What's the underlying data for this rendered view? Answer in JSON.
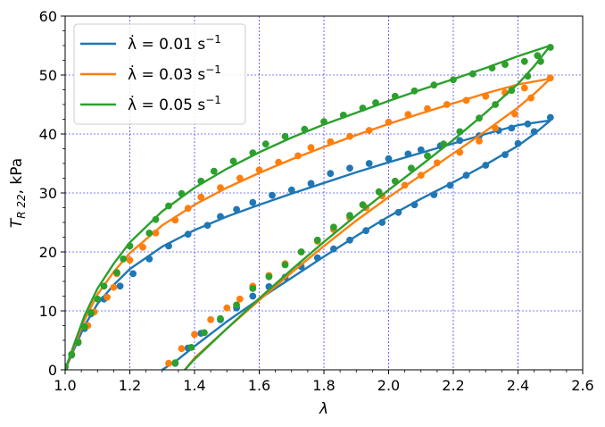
{
  "chart_data": {
    "type": "line",
    "xlabel": "λ",
    "ylabel_main": "T",
    "ylabel_sub": "R 22",
    "ylabel_suffix": ", kPa",
    "xlim": [
      1.0,
      2.6
    ],
    "ylim": [
      0,
      60
    ],
    "xticks": [
      1.0,
      1.2,
      1.4,
      1.6,
      1.8,
      2.0,
      2.2,
      2.4,
      2.6
    ],
    "yticks": [
      0,
      10,
      20,
      30,
      40,
      50,
      60
    ],
    "xtick_labels": [
      "1.0",
      "1.2",
      "1.4",
      "1.6",
      "1.8",
      "2.0",
      "2.2",
      "2.4",
      "2.6"
    ],
    "ytick_labels": [
      "0",
      "10",
      "20",
      "30",
      "40",
      "50",
      "60"
    ],
    "grid": true,
    "legend_position": "top-left",
    "series": [
      {
        "name_prefix": "λ̇ =  0.01 s",
        "name_exp": "−1",
        "color": "#1f77b4",
        "model_loading": [
          [
            1.0,
            0
          ],
          [
            1.03,
            3.8
          ],
          [
            1.06,
            7.5
          ],
          [
            1.1,
            11.2
          ],
          [
            1.15,
            14.4
          ],
          [
            1.2,
            17.1
          ],
          [
            1.3,
            20.9
          ],
          [
            1.4,
            23.7
          ],
          [
            1.5,
            26.0
          ],
          [
            1.6,
            28.0
          ],
          [
            1.7,
            29.9
          ],
          [
            1.8,
            31.7
          ],
          [
            1.9,
            33.5
          ],
          [
            2.0,
            35.2
          ],
          [
            2.1,
            36.8
          ],
          [
            2.2,
            38.4
          ],
          [
            2.3,
            40.0
          ],
          [
            2.4,
            41.5
          ],
          [
            2.5,
            42.3
          ]
        ],
        "model_unloading": [
          [
            2.5,
            42.3
          ],
          [
            2.45,
            40.0
          ],
          [
            2.4,
            38.0
          ],
          [
            2.3,
            34.8
          ],
          [
            2.2,
            31.8
          ],
          [
            2.1,
            29.0
          ],
          [
            2.0,
            26.0
          ],
          [
            1.9,
            22.7
          ],
          [
            1.8,
            19.2
          ],
          [
            1.7,
            15.6
          ],
          [
            1.6,
            12.0
          ],
          [
            1.5,
            8.2
          ],
          [
            1.4,
            4.0
          ],
          [
            1.35,
            1.8
          ],
          [
            1.3,
            0
          ]
        ],
        "experiment": [
          [
            1.0,
            0.5
          ],
          [
            1.02,
            2.5
          ],
          [
            1.04,
            4.6
          ],
          [
            1.06,
            7.0
          ],
          [
            1.08,
            9.5
          ],
          [
            1.12,
            12.0
          ],
          [
            1.17,
            14.2
          ],
          [
            1.21,
            16.3
          ],
          [
            1.26,
            18.8
          ],
          [
            1.32,
            21.0
          ],
          [
            1.38,
            23.0
          ],
          [
            1.44,
            24.5
          ],
          [
            1.48,
            26.0
          ],
          [
            1.53,
            27.2
          ],
          [
            1.58,
            28.4
          ],
          [
            1.64,
            29.6
          ],
          [
            1.7,
            30.5
          ],
          [
            1.76,
            31.6
          ],
          [
            1.82,
            33.3
          ],
          [
            1.88,
            34.2
          ],
          [
            1.94,
            35.0
          ],
          [
            2.0,
            35.8
          ],
          [
            2.06,
            36.6
          ],
          [
            2.1,
            37.3
          ],
          [
            2.16,
            38.0
          ],
          [
            2.22,
            38.9
          ],
          [
            2.28,
            39.7
          ],
          [
            2.34,
            40.6
          ],
          [
            2.38,
            41.0
          ],
          [
            2.43,
            41.7
          ],
          [
            2.5,
            42.8
          ],
          [
            2.45,
            40.4
          ],
          [
            2.4,
            38.4
          ],
          [
            2.36,
            36.5
          ],
          [
            2.3,
            34.7
          ],
          [
            2.24,
            33.0
          ],
          [
            2.19,
            31.3
          ],
          [
            2.14,
            29.7
          ],
          [
            2.08,
            28.0
          ],
          [
            2.03,
            26.7
          ],
          [
            1.98,
            25.0
          ],
          [
            1.93,
            23.6
          ],
          [
            1.88,
            22.0
          ],
          [
            1.83,
            20.5
          ],
          [
            1.78,
            19.0
          ],
          [
            1.73,
            17.5
          ],
          [
            1.68,
            15.7
          ],
          [
            1.63,
            14.1
          ],
          [
            1.58,
            12.5
          ],
          [
            1.53,
            10.5
          ],
          [
            1.48,
            8.5
          ],
          [
            1.42,
            6.2
          ],
          [
            1.38,
            3.7
          ],
          [
            1.34,
            1.1
          ]
        ]
      },
      {
        "name_prefix": "λ̇ =  0.03 s",
        "name_exp": "−1",
        "color": "#ff7f0e",
        "model_loading": [
          [
            1.0,
            0
          ],
          [
            1.03,
            4.3
          ],
          [
            1.06,
            8.5
          ],
          [
            1.1,
            12.8
          ],
          [
            1.15,
            16.6
          ],
          [
            1.2,
            19.8
          ],
          [
            1.3,
            24.5
          ],
          [
            1.4,
            28.0
          ],
          [
            1.5,
            30.9
          ],
          [
            1.6,
            33.4
          ],
          [
            1.7,
            35.7
          ],
          [
            1.8,
            37.8
          ],
          [
            1.9,
            39.8
          ],
          [
            2.0,
            41.7
          ],
          [
            2.1,
            43.5
          ],
          [
            2.2,
            45.2
          ],
          [
            2.3,
            46.9
          ],
          [
            2.4,
            48.4
          ],
          [
            2.5,
            49.4
          ]
        ],
        "model_unloading": [
          [
            2.5,
            49.4
          ],
          [
            2.45,
            46.8
          ],
          [
            2.4,
            44.5
          ],
          [
            2.3,
            40.5
          ],
          [
            2.2,
            36.7
          ],
          [
            2.1,
            33.0
          ],
          [
            2.0,
            29.3
          ],
          [
            1.9,
            25.3
          ],
          [
            1.8,
            21.0
          ],
          [
            1.7,
            16.5
          ],
          [
            1.6,
            11.8
          ],
          [
            1.5,
            7.0
          ],
          [
            1.45,
            4.5
          ],
          [
            1.4,
            2.0
          ],
          [
            1.37,
            0
          ]
        ],
        "experiment": [
          [
            1.0,
            0.5
          ],
          [
            1.02,
            2.6
          ],
          [
            1.04,
            4.8
          ],
          [
            1.07,
            7.5
          ],
          [
            1.09,
            9.8
          ],
          [
            1.13,
            12.3
          ],
          [
            1.15,
            14.0
          ],
          [
            1.16,
            16.3
          ],
          [
            1.2,
            18.6
          ],
          [
            1.24,
            20.8
          ],
          [
            1.28,
            23.2
          ],
          [
            1.34,
            25.4
          ],
          [
            1.38,
            27.4
          ],
          [
            1.42,
            29.3
          ],
          [
            1.48,
            30.9
          ],
          [
            1.54,
            32.5
          ],
          [
            1.6,
            33.9
          ],
          [
            1.66,
            35.2
          ],
          [
            1.72,
            36.3
          ],
          [
            1.76,
            37.7
          ],
          [
            1.82,
            38.7
          ],
          [
            1.88,
            39.6
          ],
          [
            1.94,
            40.6
          ],
          [
            2.0,
            42.0
          ],
          [
            2.06,
            43.3
          ],
          [
            2.12,
            44.3
          ],
          [
            2.18,
            45.0
          ],
          [
            2.24,
            45.7
          ],
          [
            2.3,
            46.4
          ],
          [
            2.36,
            47.0
          ],
          [
            2.42,
            47.8
          ],
          [
            2.5,
            49.5
          ],
          [
            2.44,
            46.1
          ],
          [
            2.39,
            43.4
          ],
          [
            2.33,
            41.0
          ],
          [
            2.28,
            38.8
          ],
          [
            2.22,
            36.9
          ],
          [
            2.15,
            35.1
          ],
          [
            2.1,
            33.0
          ],
          [
            2.05,
            31.3
          ],
          [
            1.98,
            29.5
          ],
          [
            1.93,
            27.5
          ],
          [
            1.88,
            25.8
          ],
          [
            1.83,
            23.8
          ],
          [
            1.78,
            21.8
          ],
          [
            1.73,
            20.0
          ],
          [
            1.68,
            18.0
          ],
          [
            1.63,
            16.0
          ],
          [
            1.58,
            14.2
          ],
          [
            1.54,
            12.0
          ],
          [
            1.5,
            10.5
          ],
          [
            1.45,
            8.5
          ],
          [
            1.4,
            6.0
          ],
          [
            1.36,
            3.6
          ],
          [
            1.32,
            1.1
          ]
        ]
      },
      {
        "name_prefix": "λ̇ =  0.05 s",
        "name_exp": "−1",
        "color": "#2ca02c",
        "model_loading": [
          [
            1.0,
            0
          ],
          [
            1.03,
            4.7
          ],
          [
            1.06,
            9.2
          ],
          [
            1.1,
            13.8
          ],
          [
            1.15,
            18.0
          ],
          [
            1.2,
            21.6
          ],
          [
            1.3,
            26.9
          ],
          [
            1.4,
            30.9
          ],
          [
            1.5,
            34.1
          ],
          [
            1.6,
            36.9
          ],
          [
            1.7,
            39.4
          ],
          [
            1.8,
            41.6
          ],
          [
            1.9,
            43.6
          ],
          [
            2.0,
            45.6
          ],
          [
            2.1,
            47.5
          ],
          [
            2.2,
            49.3
          ],
          [
            2.3,
            51.2
          ],
          [
            2.4,
            53.2
          ],
          [
            2.5,
            55.0
          ]
        ],
        "model_unloading": [
          [
            2.5,
            55.0
          ],
          [
            2.45,
            51.5
          ],
          [
            2.4,
            48.5
          ],
          [
            2.3,
            43.6
          ],
          [
            2.2,
            39.0
          ],
          [
            2.1,
            34.7
          ],
          [
            2.0,
            30.5
          ],
          [
            1.9,
            26.2
          ],
          [
            1.8,
            21.7
          ],
          [
            1.7,
            17.0
          ],
          [
            1.6,
            12.1
          ],
          [
            1.5,
            7.0
          ],
          [
            1.45,
            4.4
          ],
          [
            1.4,
            1.8
          ],
          [
            1.37,
            0
          ]
        ],
        "experiment": [
          [
            1.0,
            0.5
          ],
          [
            1.02,
            2.6
          ],
          [
            1.04,
            4.7
          ],
          [
            1.06,
            7.3
          ],
          [
            1.08,
            9.7
          ],
          [
            1.1,
            12.0
          ],
          [
            1.12,
            14.2
          ],
          [
            1.16,
            16.5
          ],
          [
            1.18,
            18.8
          ],
          [
            1.2,
            21.0
          ],
          [
            1.26,
            23.2
          ],
          [
            1.28,
            25.5
          ],
          [
            1.32,
            27.8
          ],
          [
            1.36,
            29.9
          ],
          [
            1.42,
            32.0
          ],
          [
            1.46,
            33.7
          ],
          [
            1.52,
            35.4
          ],
          [
            1.58,
            36.8
          ],
          [
            1.62,
            38.3
          ],
          [
            1.68,
            39.6
          ],
          [
            1.74,
            40.8
          ],
          [
            1.8,
            42.1
          ],
          [
            1.86,
            43.2
          ],
          [
            1.92,
            44.4
          ],
          [
            1.96,
            45.3
          ],
          [
            2.02,
            46.4
          ],
          [
            2.08,
            47.3
          ],
          [
            2.14,
            48.3
          ],
          [
            2.2,
            49.2
          ],
          [
            2.26,
            50.2
          ],
          [
            2.32,
            51.2
          ],
          [
            2.36,
            51.8
          ],
          [
            2.42,
            52.3
          ],
          [
            2.46,
            53.3
          ],
          [
            2.5,
            54.7
          ],
          [
            2.47,
            52.3
          ],
          [
            2.43,
            49.8
          ],
          [
            2.38,
            47.4
          ],
          [
            2.33,
            45.0
          ],
          [
            2.28,
            42.7
          ],
          [
            2.22,
            40.4
          ],
          [
            2.17,
            38.3
          ],
          [
            2.12,
            36.3
          ],
          [
            2.07,
            34.2
          ],
          [
            2.02,
            32.0
          ],
          [
            1.97,
            30.2
          ],
          [
            1.92,
            28.0
          ],
          [
            1.88,
            26.2
          ],
          [
            1.83,
            24.2
          ],
          [
            1.78,
            22.0
          ],
          [
            1.73,
            20.0
          ],
          [
            1.68,
            17.8
          ],
          [
            1.63,
            15.8
          ],
          [
            1.58,
            13.8
          ],
          [
            1.53,
            11.0
          ],
          [
            1.48,
            8.7
          ],
          [
            1.43,
            6.3
          ],
          [
            1.39,
            3.8
          ],
          [
            1.34,
            1.2
          ]
        ]
      }
    ]
  }
}
